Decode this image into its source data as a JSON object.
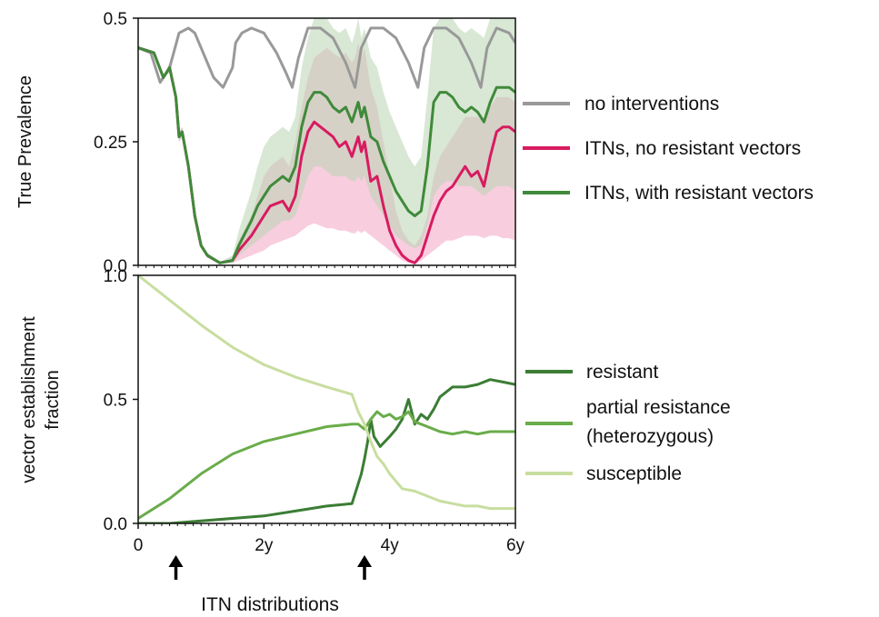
{
  "chart_data": [
    {
      "type": "area",
      "ylabel": "True Prevalence",
      "ylim": [
        0,
        0.5
      ],
      "xlim": [
        0,
        6
      ],
      "yticks": [
        {
          "value": 0,
          "label": "0.0"
        },
        {
          "value": 0.25,
          "label": "0.25"
        },
        {
          "value": 0.5,
          "label": "0.5"
        }
      ],
      "legend_position": "right",
      "series": [
        {
          "name": "no interventions",
          "color": "#999999",
          "x": [
            0,
            0.2,
            0.35,
            0.5,
            0.65,
            0.8,
            0.9,
            1.0,
            1.1,
            1.2,
            1.35,
            1.5,
            1.55,
            1.65,
            1.8,
            2.0,
            2.2,
            2.35,
            2.45,
            2.55,
            2.7,
            2.9,
            3.1,
            3.3,
            3.45,
            3.55,
            3.7,
            3.9,
            4.1,
            4.3,
            4.45,
            4.55,
            4.7,
            4.9,
            5.1,
            5.3,
            5.45,
            5.55,
            5.7,
            5.9,
            6.0
          ],
          "y": [
            0.44,
            0.43,
            0.37,
            0.4,
            0.47,
            0.48,
            0.47,
            0.44,
            0.41,
            0.38,
            0.36,
            0.4,
            0.45,
            0.47,
            0.48,
            0.47,
            0.43,
            0.39,
            0.36,
            0.42,
            0.48,
            0.48,
            0.46,
            0.41,
            0.36,
            0.44,
            0.48,
            0.48,
            0.46,
            0.41,
            0.36,
            0.44,
            0.48,
            0.48,
            0.46,
            0.41,
            0.36,
            0.44,
            0.48,
            0.47,
            0.45
          ]
        },
        {
          "name": "ITNs, no resistant vectors",
          "color": "#d81b60",
          "band_color": "#f2a6c4",
          "x": [
            0,
            0.25,
            0.4,
            0.5,
            0.6,
            0.65,
            0.7,
            0.8,
            0.9,
            1.0,
            1.1,
            1.3,
            1.5,
            1.6,
            1.8,
            1.9,
            2.0,
            2.1,
            2.3,
            2.4,
            2.5,
            2.6,
            2.7,
            2.8,
            2.9,
            3.0,
            3.1,
            3.2,
            3.3,
            3.4,
            3.45,
            3.5,
            3.55,
            3.6,
            3.7,
            3.8,
            3.9,
            4.0,
            4.1,
            4.2,
            4.3,
            4.4,
            4.5,
            4.6,
            4.7,
            4.8,
            4.9,
            5.0,
            5.1,
            5.2,
            5.3,
            5.4,
            5.5,
            5.6,
            5.7,
            5.8,
            5.9,
            6.0
          ],
          "y": [
            0.44,
            0.43,
            0.38,
            0.4,
            0.34,
            0.26,
            0.27,
            0.2,
            0.1,
            0.04,
            0.02,
            0.005,
            0.01,
            0.03,
            0.06,
            0.08,
            0.1,
            0.12,
            0.13,
            0.11,
            0.14,
            0.22,
            0.27,
            0.29,
            0.28,
            0.27,
            0.26,
            0.24,
            0.25,
            0.22,
            0.24,
            0.26,
            0.23,
            0.25,
            0.17,
            0.18,
            0.12,
            0.07,
            0.04,
            0.02,
            0.01,
            0.005,
            0.02,
            0.06,
            0.1,
            0.13,
            0.15,
            0.16,
            0.18,
            0.2,
            0.18,
            0.19,
            0.16,
            0.22,
            0.27,
            0.28,
            0.28,
            0.27
          ],
          "band_low": [
            0.44,
            0.43,
            0.38,
            0.39,
            0.33,
            0.25,
            0.26,
            0.19,
            0.09,
            0.035,
            0.015,
            0.003,
            0.005,
            0.01,
            0.02,
            0.025,
            0.03,
            0.04,
            0.05,
            0.055,
            0.06,
            0.07,
            0.08,
            0.085,
            0.08,
            0.075,
            0.075,
            0.07,
            0.07,
            0.065,
            0.065,
            0.07,
            0.065,
            0.07,
            0.06,
            0.05,
            0.04,
            0.03,
            0.02,
            0.01,
            0.005,
            0.003,
            0.01,
            0.02,
            0.03,
            0.04,
            0.05,
            0.05,
            0.055,
            0.06,
            0.06,
            0.06,
            0.055,
            0.06,
            0.06,
            0.055,
            0.055,
            0.05
          ],
          "band_high": [
            0.44,
            0.43,
            0.38,
            0.41,
            0.35,
            0.27,
            0.28,
            0.21,
            0.11,
            0.045,
            0.025,
            0.007,
            0.015,
            0.05,
            0.1,
            0.14,
            0.18,
            0.2,
            0.22,
            0.2,
            0.25,
            0.32,
            0.38,
            0.42,
            0.43,
            0.44,
            0.43,
            0.42,
            0.43,
            0.41,
            0.42,
            0.45,
            0.42,
            0.44,
            0.36,
            0.32,
            0.25,
            0.18,
            0.11,
            0.07,
            0.05,
            0.04,
            0.06,
            0.1,
            0.18,
            0.22,
            0.24,
            0.26,
            0.28,
            0.3,
            0.3,
            0.3,
            0.29,
            0.32,
            0.34,
            0.34,
            0.34,
            0.33
          ]
        },
        {
          "name": "ITNs, with resistant vectors",
          "color": "#3f8a3a",
          "band_color": "#b9d3b3",
          "x": [
            0,
            0.25,
            0.4,
            0.5,
            0.6,
            0.65,
            0.7,
            0.8,
            0.9,
            1.0,
            1.1,
            1.3,
            1.5,
            1.6,
            1.8,
            1.9,
            2.0,
            2.1,
            2.3,
            2.4,
            2.5,
            2.6,
            2.7,
            2.8,
            2.9,
            3.0,
            3.1,
            3.2,
            3.3,
            3.4,
            3.45,
            3.5,
            3.55,
            3.6,
            3.7,
            3.8,
            3.9,
            4.0,
            4.1,
            4.2,
            4.3,
            4.4,
            4.5,
            4.6,
            4.7,
            4.8,
            4.9,
            5.0,
            5.1,
            5.2,
            5.3,
            5.4,
            5.5,
            5.6,
            5.7,
            5.8,
            5.9,
            6.0
          ],
          "y": [
            0.44,
            0.43,
            0.38,
            0.4,
            0.34,
            0.26,
            0.27,
            0.2,
            0.1,
            0.04,
            0.02,
            0.005,
            0.01,
            0.04,
            0.09,
            0.12,
            0.14,
            0.16,
            0.18,
            0.17,
            0.2,
            0.28,
            0.33,
            0.35,
            0.35,
            0.34,
            0.32,
            0.31,
            0.32,
            0.29,
            0.31,
            0.33,
            0.3,
            0.32,
            0.26,
            0.25,
            0.21,
            0.18,
            0.15,
            0.13,
            0.11,
            0.1,
            0.11,
            0.2,
            0.33,
            0.35,
            0.35,
            0.34,
            0.32,
            0.31,
            0.32,
            0.31,
            0.29,
            0.33,
            0.36,
            0.36,
            0.36,
            0.35
          ],
          "band_low": [
            0.44,
            0.43,
            0.38,
            0.39,
            0.33,
            0.25,
            0.26,
            0.19,
            0.09,
            0.035,
            0.015,
            0.003,
            0.005,
            0.02,
            0.04,
            0.05,
            0.06,
            0.07,
            0.09,
            0.09,
            0.1,
            0.14,
            0.18,
            0.2,
            0.2,
            0.19,
            0.18,
            0.18,
            0.18,
            0.17,
            0.17,
            0.18,
            0.17,
            0.18,
            0.14,
            0.12,
            0.1,
            0.08,
            0.06,
            0.05,
            0.04,
            0.035,
            0.04,
            0.08,
            0.14,
            0.16,
            0.17,
            0.17,
            0.16,
            0.16,
            0.16,
            0.15,
            0.14,
            0.15,
            0.16,
            0.16,
            0.16,
            0.15
          ],
          "band_high": [
            0.44,
            0.43,
            0.38,
            0.41,
            0.35,
            0.27,
            0.28,
            0.21,
            0.11,
            0.045,
            0.025,
            0.007,
            0.02,
            0.07,
            0.15,
            0.2,
            0.24,
            0.26,
            0.28,
            0.27,
            0.3,
            0.4,
            0.46,
            0.5,
            0.5,
            0.5,
            0.48,
            0.47,
            0.48,
            0.45,
            0.47,
            0.5,
            0.46,
            0.48,
            0.42,
            0.4,
            0.35,
            0.31,
            0.28,
            0.25,
            0.22,
            0.2,
            0.22,
            0.34,
            0.48,
            0.5,
            0.5,
            0.5,
            0.48,
            0.47,
            0.48,
            0.47,
            0.46,
            0.5,
            0.5,
            0.5,
            0.5,
            0.5
          ]
        }
      ]
    },
    {
      "type": "line",
      "ylabel": "vector establishment fraction",
      "ylim": [
        0,
        1.0
      ],
      "xlim": [
        0,
        6
      ],
      "yticks": [
        {
          "value": 0,
          "label": "0.0"
        },
        {
          "value": 0.5,
          "label": "0.5"
        },
        {
          "value": 1.0,
          "label": "1.0"
        }
      ],
      "xticks": [
        {
          "value": 0,
          "label": "0"
        },
        {
          "value": 2,
          "label": "2y"
        },
        {
          "value": 4,
          "label": "4y"
        },
        {
          "value": 6,
          "label": "6y"
        }
      ],
      "legend_position": "right",
      "series": [
        {
          "name": "resistant",
          "color": "#3b7d34",
          "x": [
            0,
            0.5,
            1.0,
            1.5,
            2.0,
            2.5,
            3.0,
            3.4,
            3.5,
            3.55,
            3.6,
            3.65,
            3.7,
            3.75,
            3.85,
            4.0,
            4.1,
            4.2,
            4.3,
            4.4,
            4.5,
            4.6,
            4.7,
            4.8,
            5.0,
            5.2,
            5.4,
            5.6,
            5.8,
            6.0
          ],
          "y": [
            0.0,
            0.0,
            0.01,
            0.02,
            0.03,
            0.05,
            0.07,
            0.08,
            0.16,
            0.2,
            0.26,
            0.33,
            0.42,
            0.35,
            0.31,
            0.35,
            0.38,
            0.42,
            0.5,
            0.4,
            0.44,
            0.42,
            0.46,
            0.51,
            0.55,
            0.55,
            0.56,
            0.58,
            0.57,
            0.56
          ]
        },
        {
          "name": "partial resistance\n(heterozygous)",
          "legend_lines": [
            "partial resistance",
            "(heterozygous)"
          ],
          "color": "#6aac4a",
          "x": [
            0,
            0.5,
            1.0,
            1.5,
            2.0,
            2.5,
            3.0,
            3.4,
            3.5,
            3.6,
            3.7,
            3.8,
            3.9,
            4.0,
            4.1,
            4.2,
            4.3,
            4.4,
            4.5,
            4.6,
            4.8,
            5.0,
            5.2,
            5.4,
            5.6,
            5.8,
            6.0
          ],
          "y": [
            0.02,
            0.1,
            0.2,
            0.28,
            0.33,
            0.36,
            0.39,
            0.4,
            0.4,
            0.38,
            0.42,
            0.45,
            0.43,
            0.44,
            0.42,
            0.43,
            0.45,
            0.41,
            0.4,
            0.39,
            0.37,
            0.36,
            0.37,
            0.36,
            0.37,
            0.37,
            0.37
          ]
        },
        {
          "name": "susceptible",
          "color": "#c8dea0",
          "x": [
            0,
            0.5,
            1.0,
            1.5,
            2.0,
            2.5,
            3.0,
            3.4,
            3.5,
            3.6,
            3.7,
            3.8,
            3.9,
            4.0,
            4.2,
            4.4,
            4.6,
            4.8,
            5.0,
            5.2,
            5.4,
            5.6,
            5.8,
            6.0
          ],
          "y": [
            1.0,
            0.9,
            0.8,
            0.71,
            0.64,
            0.59,
            0.55,
            0.52,
            0.45,
            0.4,
            0.33,
            0.27,
            0.24,
            0.2,
            0.14,
            0.13,
            0.11,
            0.09,
            0.08,
            0.07,
            0.07,
            0.06,
            0.06,
            0.06
          ]
        }
      ]
    }
  ],
  "annotations": {
    "itn_distribution_times": [
      0.6,
      3.6
    ],
    "itn_label": "ITN distributions"
  }
}
